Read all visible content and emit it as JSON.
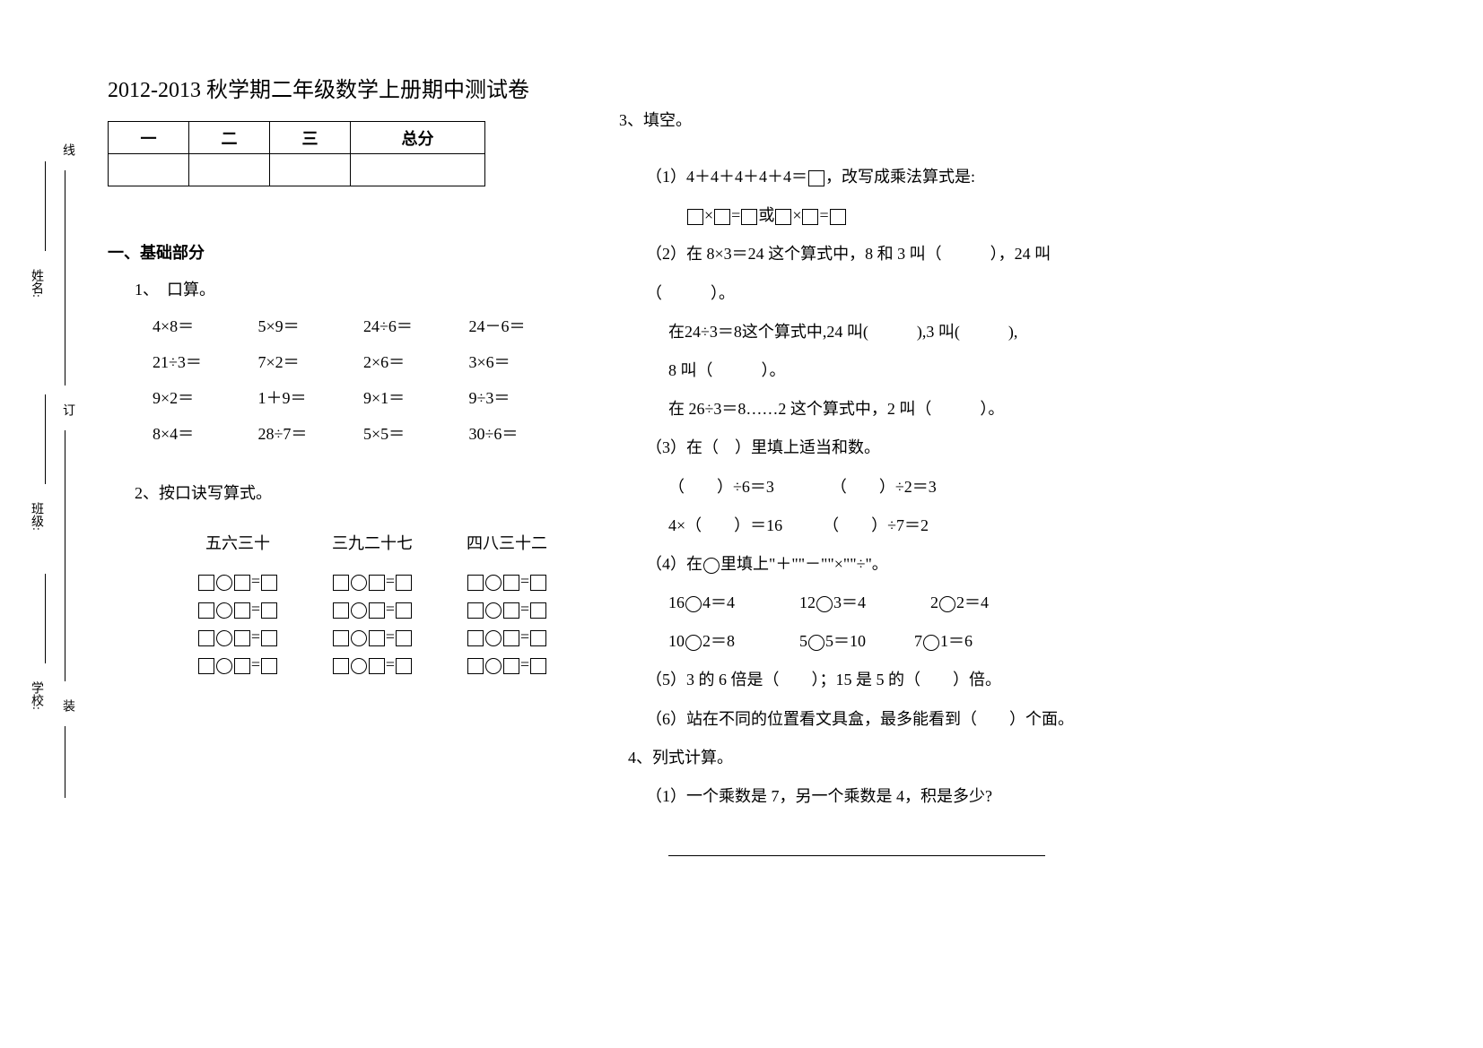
{
  "title": "2012-2013 秋学期二年级数学上册期中测试卷",
  "binding": {
    "school": "学校:",
    "class": "班级:",
    "name": "姓名:",
    "zhuang": "装",
    "ding": "订",
    "xian": "线"
  },
  "score_table": {
    "headers": [
      "一",
      "二",
      "三",
      "总分"
    ]
  },
  "section1": {
    "title": "一、基础部分",
    "q1": {
      "label": "1、　口算。",
      "rows": [
        [
          "4×8＝",
          "5×9＝",
          "24÷6＝",
          "24－6＝"
        ],
        [
          "21÷3＝",
          "7×2＝",
          "2×6＝",
          "3×6＝"
        ],
        [
          "9×2＝",
          "1＋9＝",
          "9×1＝",
          "9÷3＝"
        ],
        [
          "8×4＝",
          "28÷7＝",
          "5×5＝",
          "30÷6＝"
        ]
      ]
    },
    "q2": {
      "label": "2、按口诀写算式。",
      "headers": [
        "五六三十",
        "三九二十七",
        "四八三十二"
      ]
    },
    "q3": {
      "label": "3、填空。",
      "item1_a": "（1）4＋4＋4＋4＋4＝",
      "item1_b": "，改写成乘法算式是:",
      "item1_line2_mid": "或",
      "item2_a": "（2）在 8×3＝24 这个算式中，8 和 3 叫（　　　），24 叫",
      "item2_b": "（　　　）。",
      "item2_c": "在24÷3＝8这个算式中,24 叫(　　　),3 叫(　　　),",
      "item2_d": "8 叫（　　　）。",
      "item2_e": "在 26÷3＝8……2 这个算式中，2 叫（　　　）。",
      "item3_a": "（3）在（　）里填上适当和数。",
      "item3_b": "（　　）÷6＝3　　　　（　　）÷2＝3",
      "item3_c": "4×（　　）＝16　　　（　　）÷7＝2",
      "item4_a": "（4）在",
      "item4_b": "里填上\"＋\"\"－\"\"×\"\"÷\"。",
      "item4_row1_a": "16",
      "item4_row1_b": "4＝4　　　　12",
      "item4_row1_c": "3＝4　　　　2",
      "item4_row1_d": "2＝4",
      "item4_row2_a": "10",
      "item4_row2_b": "2＝8　　　　5",
      "item4_row2_c": "5＝10　　　7",
      "item4_row2_d": "1＝6",
      "item5": "（5）3 的 6 倍是（　　）；15 是 5 的（　　）倍。",
      "item6": "（6）站在不同的位置看文具盒，最多能看到（　　）个面。"
    },
    "q4": {
      "label": "4、列式计算。",
      "item1": "（1）一个乘数是 7，另一个乘数是 4，积是多少?"
    }
  }
}
